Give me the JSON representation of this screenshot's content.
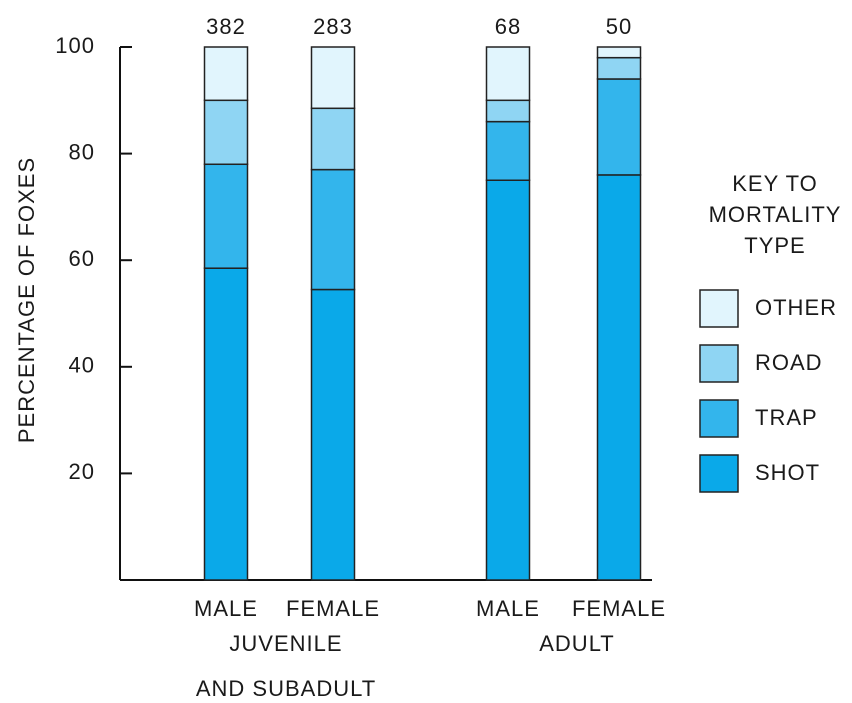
{
  "chart_data": {
    "type": "stacked_bar",
    "y_label": "PERCENTAGE OF FOXES",
    "categories": [
      "MALE",
      "FEMALE",
      "MALE",
      "FEMALE"
    ],
    "group_labels": [
      [
        "JUVENILE",
        "AND SUBADULT"
      ],
      [
        "ADULT"
      ]
    ],
    "bar_labels": [
      382,
      283,
      68,
      50
    ],
    "series": [
      {
        "name": "SHOT",
        "color": "#0aa9e9",
        "values": [
          58.5,
          54.5,
          75,
          76
        ]
      },
      {
        "name": "TRAP",
        "color": "#33b5ec",
        "values": [
          19.5,
          22.5,
          11,
          18
        ]
      },
      {
        "name": "ROAD",
        "color": "#8fd5f3",
        "values": [
          12,
          11.5,
          4,
          4
        ]
      },
      {
        "name": "OTHER",
        "color": "#e1f5fd",
        "values": [
          10,
          11.5,
          10,
          2
        ]
      }
    ],
    "ylim": [
      0,
      100
    ],
    "yticks": [
      20,
      40,
      60,
      80,
      100
    ],
    "legend_title": [
      "KEY TO",
      "MORTALITY",
      "TYPE"
    ]
  }
}
